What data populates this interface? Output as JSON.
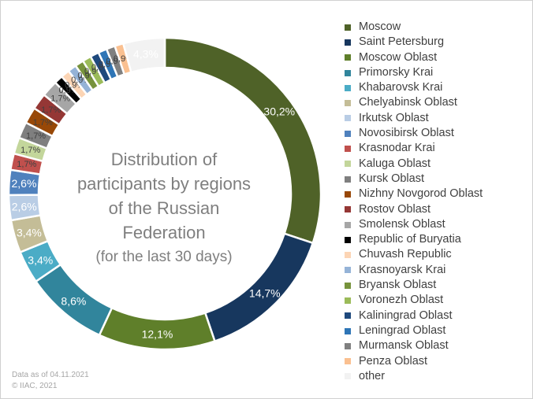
{
  "chart_data": {
    "type": "pie",
    "title": "Distribution of participants by regions of the Russian Federation",
    "subtitle": "(for the last 30 days)",
    "legend_position": "right",
    "slices": [
      {
        "name": "Moscow",
        "value": 30.2,
        "label": "30,2%",
        "color": "#4f6228"
      },
      {
        "name": "Saint Petersburg",
        "value": 14.7,
        "label": "14,7%",
        "color": "#17375e"
      },
      {
        "name": "Moscow Oblast",
        "value": 12.1,
        "label": "12,1%",
        "color": "#5f7f2a"
      },
      {
        "name": "Primorsky Krai",
        "value": 8.6,
        "label": "8,6%",
        "color": "#31859c"
      },
      {
        "name": "Khabarovsk Krai",
        "value": 3.4,
        "label": "3,4%",
        "color": "#4bacc6"
      },
      {
        "name": "Chelyabinsk Oblast",
        "value": 3.4,
        "label": "3,4%",
        "color": "#c4bd97"
      },
      {
        "name": "Irkutsk Oblast",
        "value": 2.6,
        "label": "2,6%",
        "color": "#b9cde5"
      },
      {
        "name": "Novosibirsk Oblast",
        "value": 2.6,
        "label": "2,6%",
        "color": "#4f81bd"
      },
      {
        "name": "Krasnodar Krai",
        "value": 1.7,
        "label": "1,7%",
        "color": "#c0504d"
      },
      {
        "name": "Kaluga Oblast",
        "value": 1.7,
        "label": "1,7%",
        "color": "#c3d69b"
      },
      {
        "name": "Kursk Oblast",
        "value": 1.7,
        "label": "1,7%",
        "color": "#7f7f7f"
      },
      {
        "name": "Nizhny Novgorod Oblast",
        "value": 1.7,
        "label": "1,7%",
        "color": "#984807"
      },
      {
        "name": "Rostov Oblast",
        "value": 1.7,
        "label": "1,7%",
        "color": "#953735"
      },
      {
        "name": "Smolensk Oblast",
        "value": 1.7,
        "label": "1,7%",
        "color": "#a6a6a6"
      },
      {
        "name": "Republic of Buryatia",
        "value": 0.9,
        "label": "0,9%",
        "color": "#000000"
      },
      {
        "name": "Chuvash Republic",
        "value": 0.9,
        "label": "0,9%",
        "color": "#fcd5b5"
      },
      {
        "name": "Krasnoyarsk Krai",
        "value": 0.9,
        "label": "0,9%",
        "color": "#95b3d7"
      },
      {
        "name": "Bryansk Oblast",
        "value": 0.9,
        "label": "0,9%",
        "color": "#77933c"
      },
      {
        "name": "Voronezh Oblast",
        "value": 0.9,
        "label": "0,9%",
        "color": "#9bbb59"
      },
      {
        "name": "Kaliningrad Oblast",
        "value": 0.9,
        "label": "0,9%",
        "color": "#1f497d"
      },
      {
        "name": "Leningrad Oblast",
        "value": 0.9,
        "label": "0,9%",
        "color": "#2e75b6"
      },
      {
        "name": "Murmansk Oblast",
        "value": 0.9,
        "label": "0,9%",
        "color": "#808080"
      },
      {
        "name": "Penza Oblast",
        "value": 0.9,
        "label": "0,9%",
        "color": "#fac090"
      },
      {
        "name": "other",
        "value": 4.3,
        "label": "4,3%",
        "color": "#f2f2f2"
      }
    ]
  },
  "footnote": {
    "date_line": "Data as of 04.11.2021",
    "copyright_line": "© IIAC, 2021"
  }
}
